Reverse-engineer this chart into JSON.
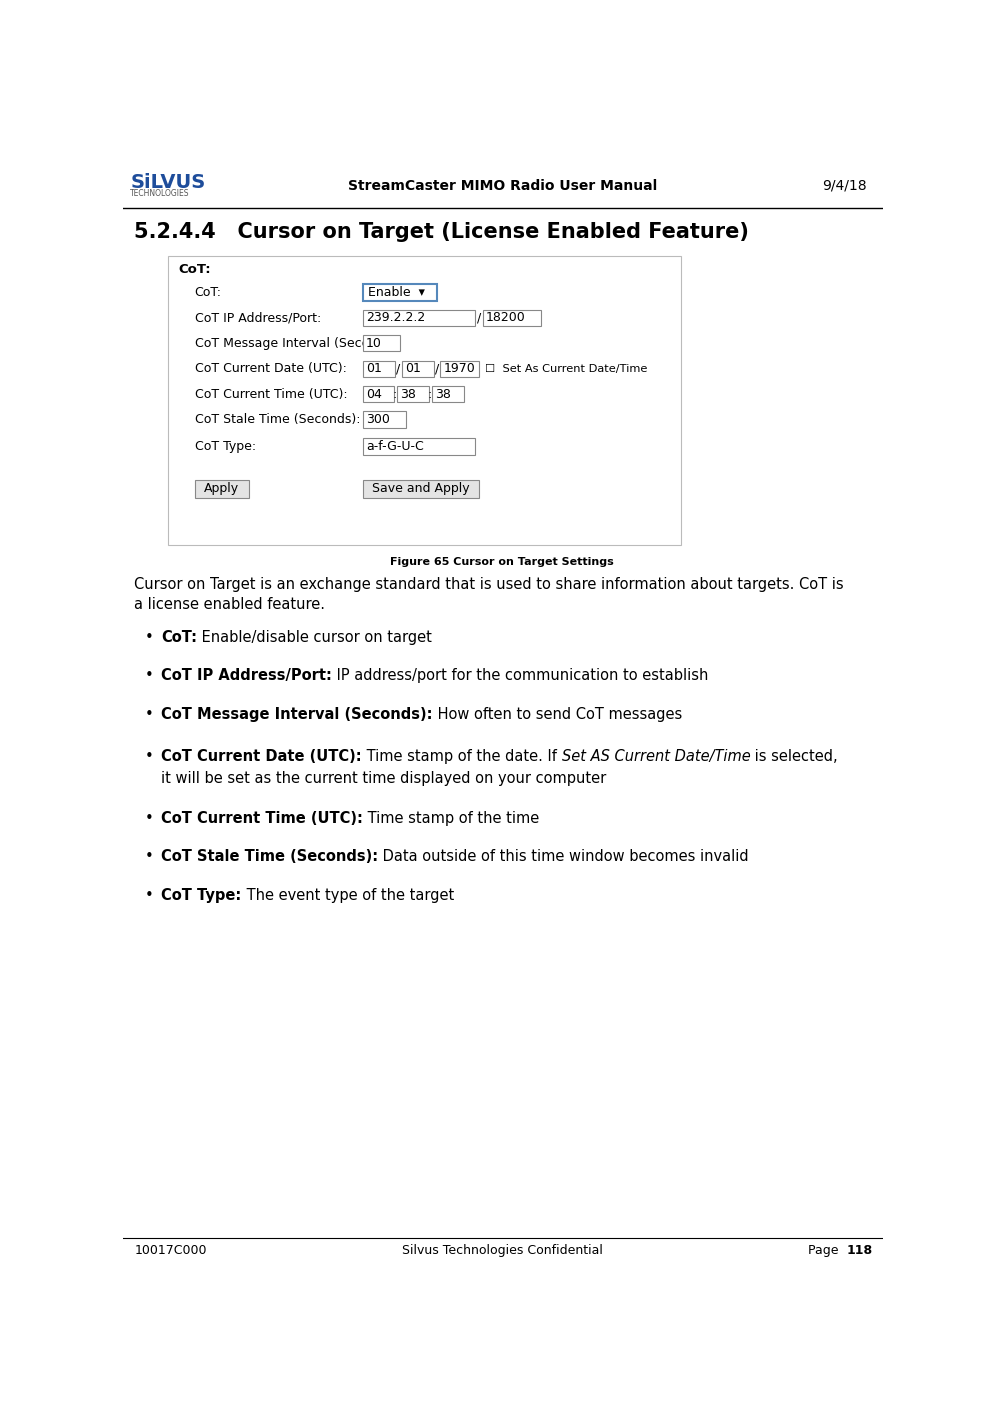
{
  "page_width": 9.81,
  "page_height": 14.11,
  "bg_color": "#ffffff",
  "header_title": "StreamCaster MIMO Radio User Manual",
  "header_date": "9/4/18",
  "footer_left": "10017C000",
  "footer_center": "Silvus Technologies Confidential",
  "footer_right": "Page  118",
  "section_title": "5.2.4.4   Cursor on Target (License Enabled Feature)",
  "figure_caption": "Figure 65 Cursor on Target Settings",
  "silvus_blue": "#1e4d9b",
  "text_color": "#000000",
  "border_color": "#888888",
  "highlight_border": "#5588bb",
  "button_bg": "#e0e0e0",
  "body_text_line1": "Cursor on Target is an exchange standard that is used to share information about targets. CoT is",
  "body_text_line2": "a license enabled feature.",
  "bullet_items": [
    {
      "bold": "CoT:",
      "normal": " Enable/disable cursor on target",
      "line2": null
    },
    {
      "bold": "CoT IP Address/Port:",
      "normal": " IP address/port for the communication to establish",
      "line2": null
    },
    {
      "bold": "CoT Message Interval (Seconds):",
      "normal": " How often to send CoT messages",
      "line2": null
    },
    {
      "bold": "CoT Current Date (UTC):",
      "normal": " Time stamp of the date. If ",
      "italic": "Set AS Current Date/Time",
      "normal2": " is selected,",
      "line2": "it will be set as the current time displayed on your computer"
    },
    {
      "bold": "CoT Current Time (UTC):",
      "normal": " Time stamp of the time",
      "line2": null
    },
    {
      "bold": "CoT Stale Time (Seconds):",
      "normal": " Data outside of this time window becomes invalid",
      "line2": null
    },
    {
      "bold": "CoT Type:",
      "normal": " The event type of the target",
      "line2": null
    }
  ]
}
